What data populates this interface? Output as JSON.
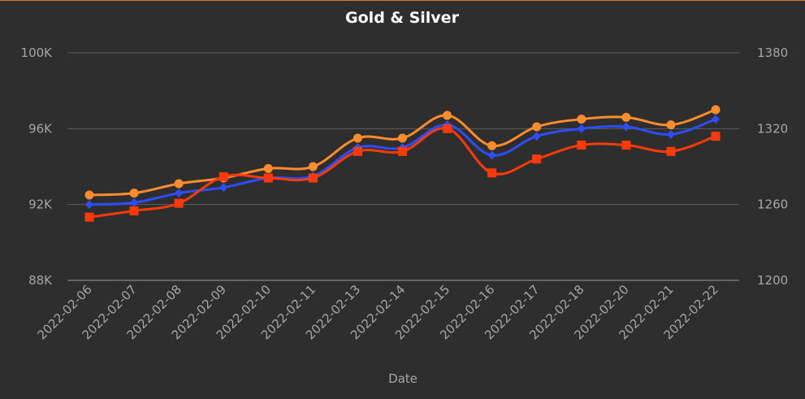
{
  "chart_data": {
    "type": "line",
    "title": "Gold & Silver",
    "xlabel": "Date",
    "categories": [
      "2022-02-06",
      "2022-02-07",
      "2022-02-08",
      "2022-02-09",
      "2022-02-10",
      "2022-02-11",
      "2022-02-13",
      "2022-02-14",
      "2022-02-15",
      "2022-02-16",
      "2022-02-17",
      "2022-02-18",
      "2022-02-20",
      "2022-02-21",
      "2022-02-22"
    ],
    "left_axis": {
      "ylim": [
        88000,
        100000
      ],
      "ticks": [
        88000,
        92000,
        96000,
        100000
      ],
      "tick_labels": [
        "88K",
        "92K",
        "96K",
        "100K"
      ]
    },
    "right_axis": {
      "ylim": [
        1200,
        1380
      ],
      "ticks": [
        1200,
        1260,
        1320,
        1380
      ],
      "tick_labels": [
        "1200",
        "1260",
        "1320",
        "1380"
      ]
    },
    "grid": true,
    "series": [
      {
        "color": "#ff8c2e",
        "marker": "circle",
        "axis": "left",
        "values": [
          92500,
          92600,
          93100,
          93400,
          93900,
          94000,
          95500,
          95500,
          96700,
          95100,
          96100,
          96500,
          96600,
          96200,
          97000
        ]
      },
      {
        "color": "#2d4dff",
        "marker": "diamond",
        "axis": "left",
        "values": [
          92000,
          92100,
          92600,
          92900,
          93400,
          93500,
          95000,
          95000,
          96200,
          94600,
          95600,
          96000,
          96100,
          95700,
          96500
        ]
      },
      {
        "color": "#ff3a0a",
        "marker": "square",
        "axis": "right",
        "values": [
          1250,
          1255,
          1261,
          1282,
          1281,
          1281,
          1302,
          1302,
          1320,
          1285,
          1296,
          1307,
          1307,
          1302,
          1314
        ]
      }
    ]
  }
}
